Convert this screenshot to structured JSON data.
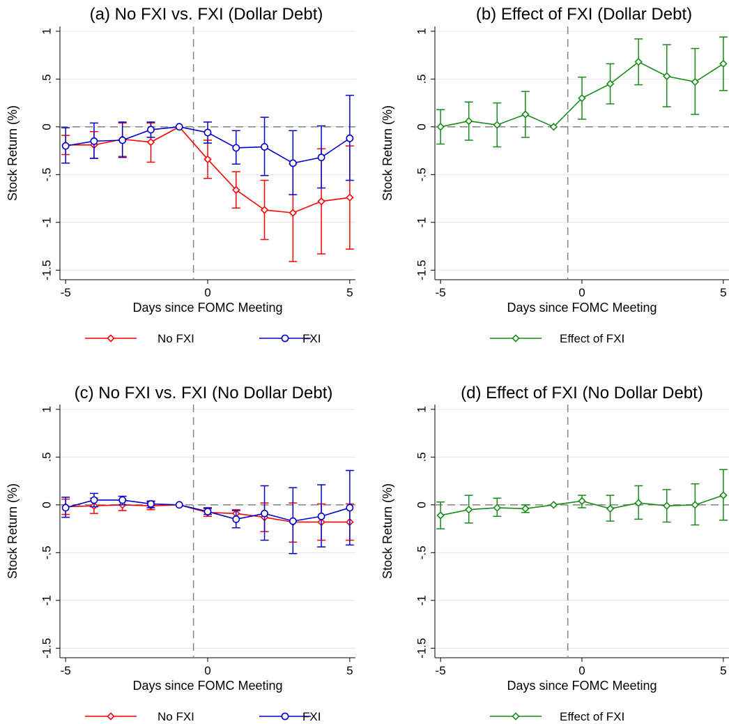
{
  "colors": {
    "no_fxi": "#ff0000",
    "fxi": "#0000cc",
    "effect": "#178a17",
    "reference_line": "#8a8a8a"
  },
  "chart_data": [
    {
      "type": "line",
      "panel": "a",
      "title": "(a) No FXI vs. FXI (Dollar Debt)",
      "xlabel": "Days since FOMC Meeting",
      "ylabel": "Stock Return (%)",
      "xlim": [
        -5.2,
        5.2
      ],
      "ylim": [
        -1.6,
        1.05
      ],
      "xticks": [
        -5,
        0,
        5
      ],
      "xtick_labels": [
        "-5",
        "0",
        "5"
      ],
      "yticks": [
        1,
        0.5,
        0,
        -0.5,
        -1,
        -1.5
      ],
      "ytick_labels": [
        "1",
        ".5",
        "0",
        "-.5",
        "-1",
        "-1.5"
      ],
      "grid": true,
      "event_line_x": -0.5,
      "legend_position": "bottom",
      "series": [
        {
          "name": "No FXI",
          "color": "#ff0000",
          "marker": "diamond",
          "x": [
            -5,
            -4,
            -3,
            -2,
            -1,
            0,
            1,
            2,
            3,
            4,
            5
          ],
          "y": [
            -0.19,
            -0.19,
            -0.13,
            -0.16,
            0,
            -0.34,
            -0.66,
            -0.87,
            -0.9,
            -0.78,
            -0.74
          ],
          "ci_low": [
            -0.29,
            -0.33,
            -0.31,
            -0.37,
            0,
            -0.54,
            -0.85,
            -1.18,
            -1.41,
            -1.33,
            -1.28
          ],
          "ci_high": [
            -0.09,
            -0.05,
            0.04,
            0.04,
            0,
            -0.14,
            -0.47,
            -0.56,
            -0.39,
            -0.23,
            -0.2
          ]
        },
        {
          "name": "FXI",
          "color": "#0000cc",
          "marker": "circle",
          "x": [
            -5,
            -4,
            -3,
            -2,
            -1,
            0,
            1,
            2,
            3,
            4,
            5
          ],
          "y": [
            -0.2,
            -0.15,
            -0.14,
            -0.03,
            0,
            -0.06,
            -0.22,
            -0.21,
            -0.38,
            -0.32,
            -0.12
          ],
          "ci_low": [
            -0.38,
            -0.33,
            -0.32,
            -0.11,
            0,
            -0.17,
            -0.39,
            -0.51,
            -0.71,
            -0.64,
            -0.56
          ],
          "ci_high": [
            -0.01,
            0.04,
            0.05,
            0.05,
            0,
            0.05,
            -0.04,
            0.1,
            -0.04,
            0.01,
            0.33
          ]
        }
      ]
    },
    {
      "type": "line",
      "panel": "b",
      "title": "(b) Effect of FXI (Dollar Debt)",
      "xlabel": "Days since FOMC Meeting",
      "ylabel": "Stock Return (%)",
      "xlim": [
        -5.2,
        5.2
      ],
      "ylim": [
        -1.6,
        1.05
      ],
      "xticks": [
        -5,
        0,
        5
      ],
      "xtick_labels": [
        "-5",
        "0",
        "5"
      ],
      "yticks": [
        1,
        0.5,
        0,
        -0.5,
        -1,
        -1.5
      ],
      "ytick_labels": [
        "1",
        ".5",
        "0",
        "-.5",
        "-1",
        "-1.5"
      ],
      "grid": true,
      "event_line_x": -0.5,
      "legend_position": "bottom",
      "series": [
        {
          "name": "Effect of FXI",
          "color": "#178a17",
          "marker": "diamond",
          "x": [
            -5,
            -4,
            -3,
            -2,
            -1,
            0,
            1,
            2,
            3,
            4,
            5
          ],
          "y": [
            0.0,
            0.06,
            0.02,
            0.13,
            0,
            0.3,
            0.45,
            0.68,
            0.53,
            0.47,
            0.66
          ],
          "ci_low": [
            -0.18,
            -0.14,
            -0.21,
            -0.11,
            0,
            0.08,
            0.24,
            0.44,
            0.21,
            0.13,
            0.38
          ],
          "ci_high": [
            0.18,
            0.26,
            0.25,
            0.37,
            0,
            0.52,
            0.66,
            0.92,
            0.86,
            0.82,
            0.94
          ]
        }
      ]
    },
    {
      "type": "line",
      "panel": "c",
      "title": "(c) No FXI vs. FXI (No Dollar Debt)",
      "xlabel": "Days since FOMC Meeting",
      "ylabel": "Stock Return (%)",
      "xlim": [
        -5.2,
        5.2
      ],
      "ylim": [
        -1.6,
        1.05
      ],
      "xticks": [
        -5,
        0,
        5
      ],
      "xtick_labels": [
        "-5",
        "0",
        "5"
      ],
      "yticks": [
        1,
        0.5,
        0,
        -0.5,
        -1,
        -1.5
      ],
      "ytick_labels": [
        "1",
        ".5",
        "0",
        "-.5",
        "-1",
        "-1.5"
      ],
      "grid": true,
      "event_line_x": -0.5,
      "legend_position": "bottom",
      "series": [
        {
          "name": "No FXI",
          "color": "#ff0000",
          "marker": "diamond",
          "x": [
            -5,
            -4,
            -3,
            -2,
            -1,
            0,
            1,
            2,
            3,
            4,
            5
          ],
          "y": [
            -0.02,
            -0.01,
            0.0,
            -0.01,
            0,
            -0.08,
            -0.09,
            -0.13,
            -0.18,
            -0.18,
            -0.18
          ],
          "ci_low": [
            -0.1,
            -0.09,
            -0.06,
            -0.05,
            0,
            -0.12,
            -0.14,
            -0.28,
            -0.39,
            -0.37,
            -0.37
          ],
          "ci_high": [
            0.06,
            0.07,
            0.05,
            0.03,
            0,
            -0.04,
            -0.05,
            0.02,
            0.02,
            0.01,
            0.01
          ]
        },
        {
          "name": "FXI",
          "color": "#0000cc",
          "marker": "circle",
          "x": [
            -5,
            -4,
            -3,
            -2,
            -1,
            0,
            1,
            2,
            3,
            4,
            5
          ],
          "y": [
            -0.03,
            0.05,
            0.05,
            0.01,
            0,
            -0.07,
            -0.15,
            -0.09,
            -0.17,
            -0.12,
            -0.03
          ],
          "ci_low": [
            -0.13,
            -0.02,
            0.0,
            -0.03,
            0,
            -0.1,
            -0.24,
            -0.37,
            -0.51,
            -0.44,
            -0.42
          ],
          "ci_high": [
            0.08,
            0.12,
            0.09,
            0.04,
            0,
            -0.03,
            -0.06,
            0.2,
            0.18,
            0.21,
            0.36
          ]
        }
      ]
    },
    {
      "type": "line",
      "panel": "d",
      "title": "(d) Effect of FXI (No Dollar Debt)",
      "xlabel": "Days since FOMC Meeting",
      "ylabel": "Stock Return (%)",
      "xlim": [
        -5.2,
        5.2
      ],
      "ylim": [
        -1.6,
        1.05
      ],
      "xticks": [
        -5,
        0,
        5
      ],
      "xtick_labels": [
        "-5",
        "0",
        "5"
      ],
      "yticks": [
        1,
        0.5,
        0,
        -0.5,
        -1,
        -1.5
      ],
      "ytick_labels": [
        "1",
        ".5",
        "0",
        "-.5",
        "-1",
        "-1.5"
      ],
      "grid": true,
      "event_line_x": -0.5,
      "legend_position": "bottom",
      "series": [
        {
          "name": "Effect of FXI",
          "color": "#178a17",
          "marker": "diamond",
          "x": [
            -5,
            -4,
            -3,
            -2,
            -1,
            0,
            1,
            2,
            3,
            4,
            5
          ],
          "y": [
            -0.11,
            -0.05,
            -0.03,
            -0.04,
            0,
            0.04,
            -0.04,
            0.02,
            -0.01,
            0.0,
            0.1
          ],
          "ci_low": [
            -0.25,
            -0.19,
            -0.12,
            -0.08,
            0,
            -0.03,
            -0.17,
            -0.15,
            -0.18,
            -0.21,
            -0.16
          ],
          "ci_high": [
            0.03,
            0.1,
            0.07,
            0.0,
            0,
            0.1,
            0.1,
            0.2,
            0.16,
            0.22,
            0.37
          ]
        }
      ]
    }
  ]
}
